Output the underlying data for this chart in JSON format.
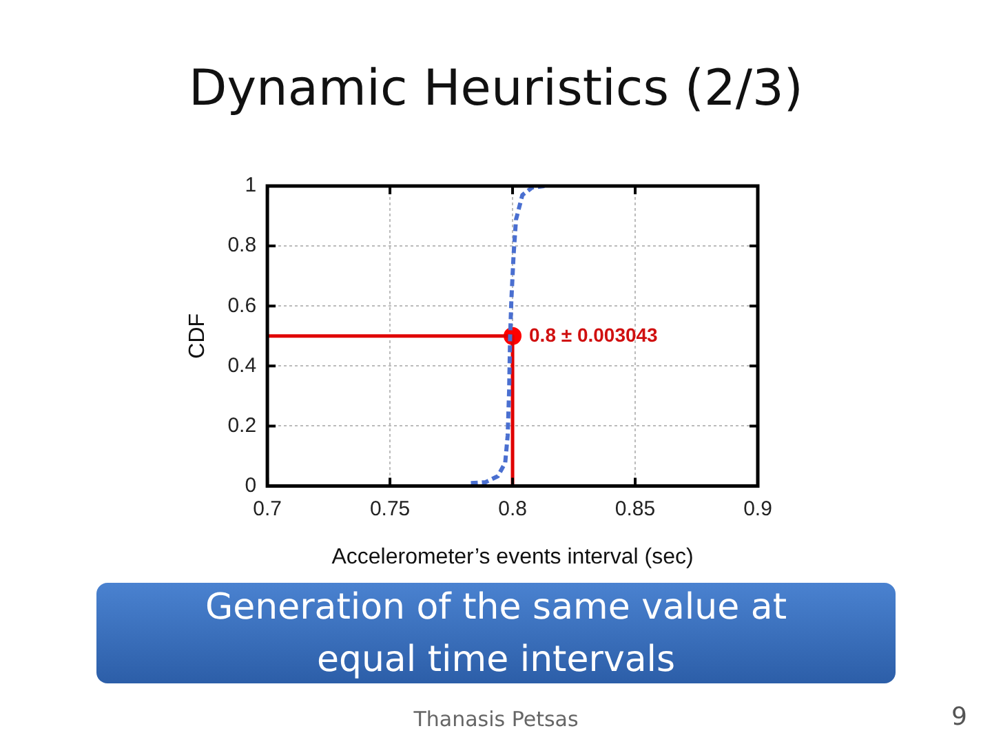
{
  "chart_data": {
    "type": "line",
    "title": "Dynamic Heuristics (2/3)",
    "xlabel": "Accelerometer’s events interval (sec)",
    "ylabel": "CDF",
    "xlim": [
      0.7,
      0.9
    ],
    "xticks": [
      0.7,
      0.75,
      0.8,
      0.85,
      0.9
    ],
    "ylim": [
      0,
      1
    ],
    "yticks": [
      0,
      0.2,
      0.4,
      0.6,
      0.8,
      1
    ],
    "grid": true,
    "legend": false,
    "series": [
      {
        "type": "line",
        "color": "#4a6fd0",
        "line_style": "dashed",
        "marker": "none",
        "x": [
          0.783,
          0.789,
          0.794,
          0.797,
          0.798,
          0.7986,
          0.799,
          0.7995,
          0.8004,
          0.8014,
          0.804,
          0.808,
          0.813
        ],
        "values": [
          0.01,
          0.013,
          0.033,
          0.078,
          0.168,
          0.318,
          0.498,
          0.618,
          0.768,
          0.888,
          0.97,
          0.995,
          1
        ]
      },
      {
        "type": "line",
        "color": "#e00000",
        "line_style": "solid",
        "marker": "none",
        "x": [
          0.7,
          0.8,
          0.8
        ],
        "values": [
          0.5,
          0.5,
          0
        ]
      },
      {
        "type": "scatter",
        "color": "#ff0000",
        "marker": "circle",
        "x": [
          0.8
        ],
        "values": [
          0.5
        ]
      }
    ],
    "annotations": [
      {
        "text": "0.8 ± 0.003043",
        "x": 0.8,
        "y": 0.5
      },
      "Generation of the same value at equal time intervals",
      "Thanasis Petsas",
      "9"
    ]
  }
}
